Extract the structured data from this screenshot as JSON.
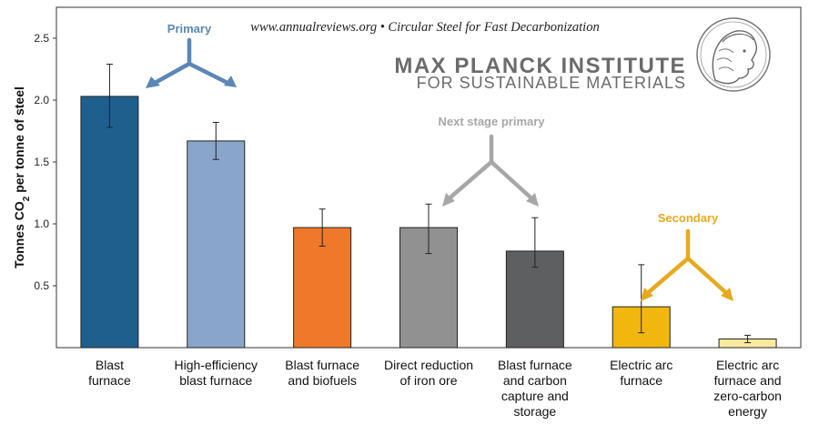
{
  "chart_data": {
    "type": "bar",
    "ylabel": "Tonnes CO",
    "ylabel_sub": "2",
    "ylabel_tail": " per tonne of steel",
    "ylim": [
      0,
      2.75
    ],
    "yticks": [
      0.5,
      1.0,
      1.5,
      2.0,
      2.5
    ],
    "ytick_labels": [
      "0.5",
      "1.0",
      "1.5",
      "2.0",
      "2.5"
    ],
    "grid": false,
    "categories": [
      "Blast furnace",
      "High-efficiency blast furnace",
      "Blast furnace and biofuels",
      "Direct reduction of iron ore",
      "Blast furnace and carbon capture and storage",
      "Electric arc furnace",
      "Electric arc furnace and zero-carbon energy"
    ],
    "category_label_lines": [
      [
        "Blast",
        "furnace"
      ],
      [
        "High-efficiency",
        "blast furnace"
      ],
      [
        "Blast furnace",
        "and biofuels"
      ],
      [
        "Direct reduction",
        "of iron ore"
      ],
      [
        "Blast furnace",
        "and carbon",
        "capture and",
        "storage"
      ],
      [
        "Electric arc",
        "furnace"
      ],
      [
        "Electric arc",
        "furnace and",
        "zero-carbon",
        "energy"
      ]
    ],
    "values": [
      2.03,
      1.67,
      0.97,
      0.97,
      0.78,
      0.33,
      0.07
    ],
    "error_low": [
      1.78,
      1.52,
      0.82,
      0.76,
      0.65,
      0.12,
      0.04
    ],
    "error_high": [
      2.29,
      1.82,
      1.12,
      1.16,
      1.05,
      0.67,
      0.1
    ],
    "bar_colors": [
      "#1f5f8e",
      "#8aa5cb",
      "#f0782b",
      "#919191",
      "#5e5f61",
      "#f1b70f",
      "#faeaa0"
    ],
    "groups": [
      {
        "label": "Primary",
        "color": "#5b86b8"
      },
      {
        "label": "Next stage primary",
        "color": "#a7a7a7"
      },
      {
        "label": "Secondary",
        "color": "#e7a91e"
      }
    ]
  },
  "header": {
    "citation": "www.annualreviews.org  •  Circular Steel for Fast Decarbonization",
    "institute_name": "MAX PLANCK INSTITUTE",
    "institute_sub": "FOR SUSTAINABLE MATERIALS"
  },
  "logo": {
    "icon": "minerva-head-logo"
  }
}
